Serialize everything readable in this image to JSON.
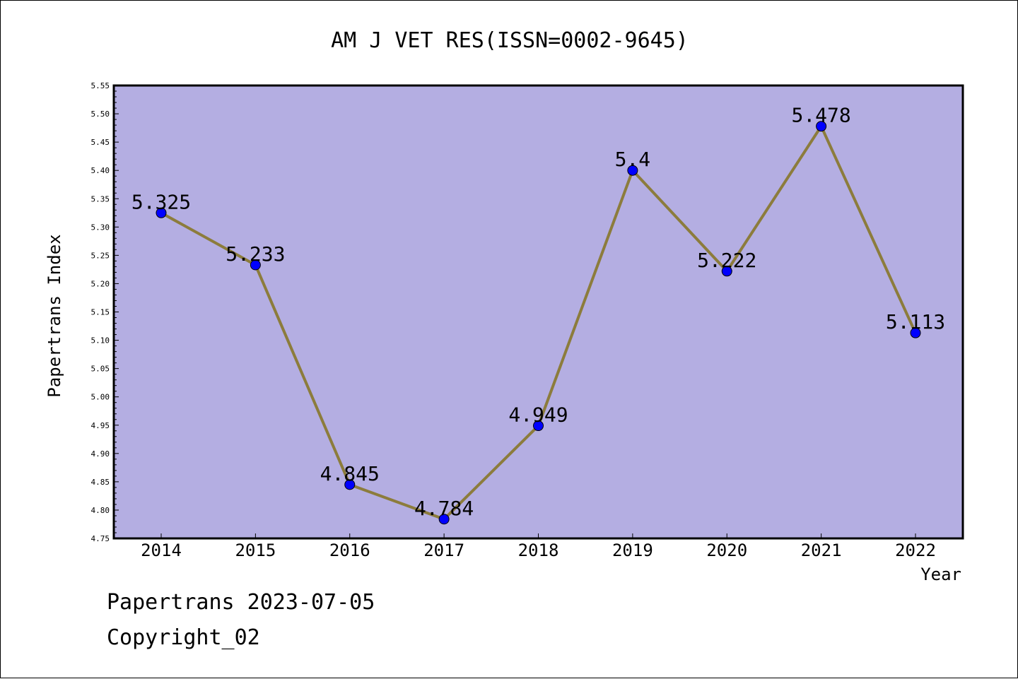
{
  "chart_data": {
    "type": "line",
    "title": "AM J VET RES(ISSN=0002-9645)",
    "xlabel": "Year",
    "ylabel": "Papertrans Index",
    "ylim": [
      4.75,
      5.55
    ],
    "y_ticks": [
      "4.75",
      "4.80",
      "4.85",
      "4.90",
      "4.95",
      "5.00",
      "5.05",
      "5.10",
      "5.15",
      "5.20",
      "5.25",
      "5.30",
      "5.35",
      "5.40",
      "5.45",
      "5.50",
      "5.55"
    ],
    "categories": [
      "2014",
      "2015",
      "2016",
      "2017",
      "2018",
      "2019",
      "2020",
      "2021",
      "2022"
    ],
    "series": [
      {
        "values": [
          5.325,
          5.233,
          4.845,
          4.784,
          4.949,
          5.4,
          5.222,
          5.478,
          5.113
        ],
        "labels": [
          "5.325",
          "5.233",
          "4.845",
          "4.784",
          "4.949",
          "5.4",
          "5.222",
          "5.478",
          "5.113"
        ]
      }
    ],
    "grid": false,
    "colors": {
      "plot_background": "#b4aee2",
      "line": "#8c7c3c",
      "marker": "#0000ff"
    }
  },
  "footer": {
    "date_text": "Papertrans 2023-07-05",
    "copyright_text": "Copyright_02"
  }
}
